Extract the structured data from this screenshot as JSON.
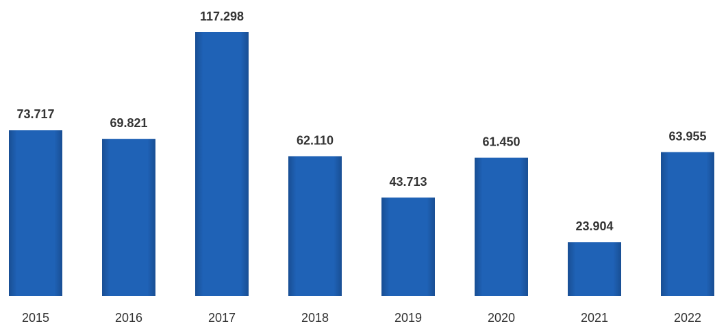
{
  "chart_data": {
    "type": "bar",
    "categories": [
      "2015",
      "2016",
      "2017",
      "2018",
      "2019",
      "2020",
      "2021",
      "2022"
    ],
    "values": [
      73717,
      69821,
      117298,
      62110,
      43713,
      61450,
      23904,
      63955
    ],
    "value_labels": [
      "73.717",
      "69.821",
      "117.298",
      "62.110",
      "43.713",
      "61.450",
      "23.904",
      "63.955"
    ],
    "color": "#1f5fb0"
  }
}
